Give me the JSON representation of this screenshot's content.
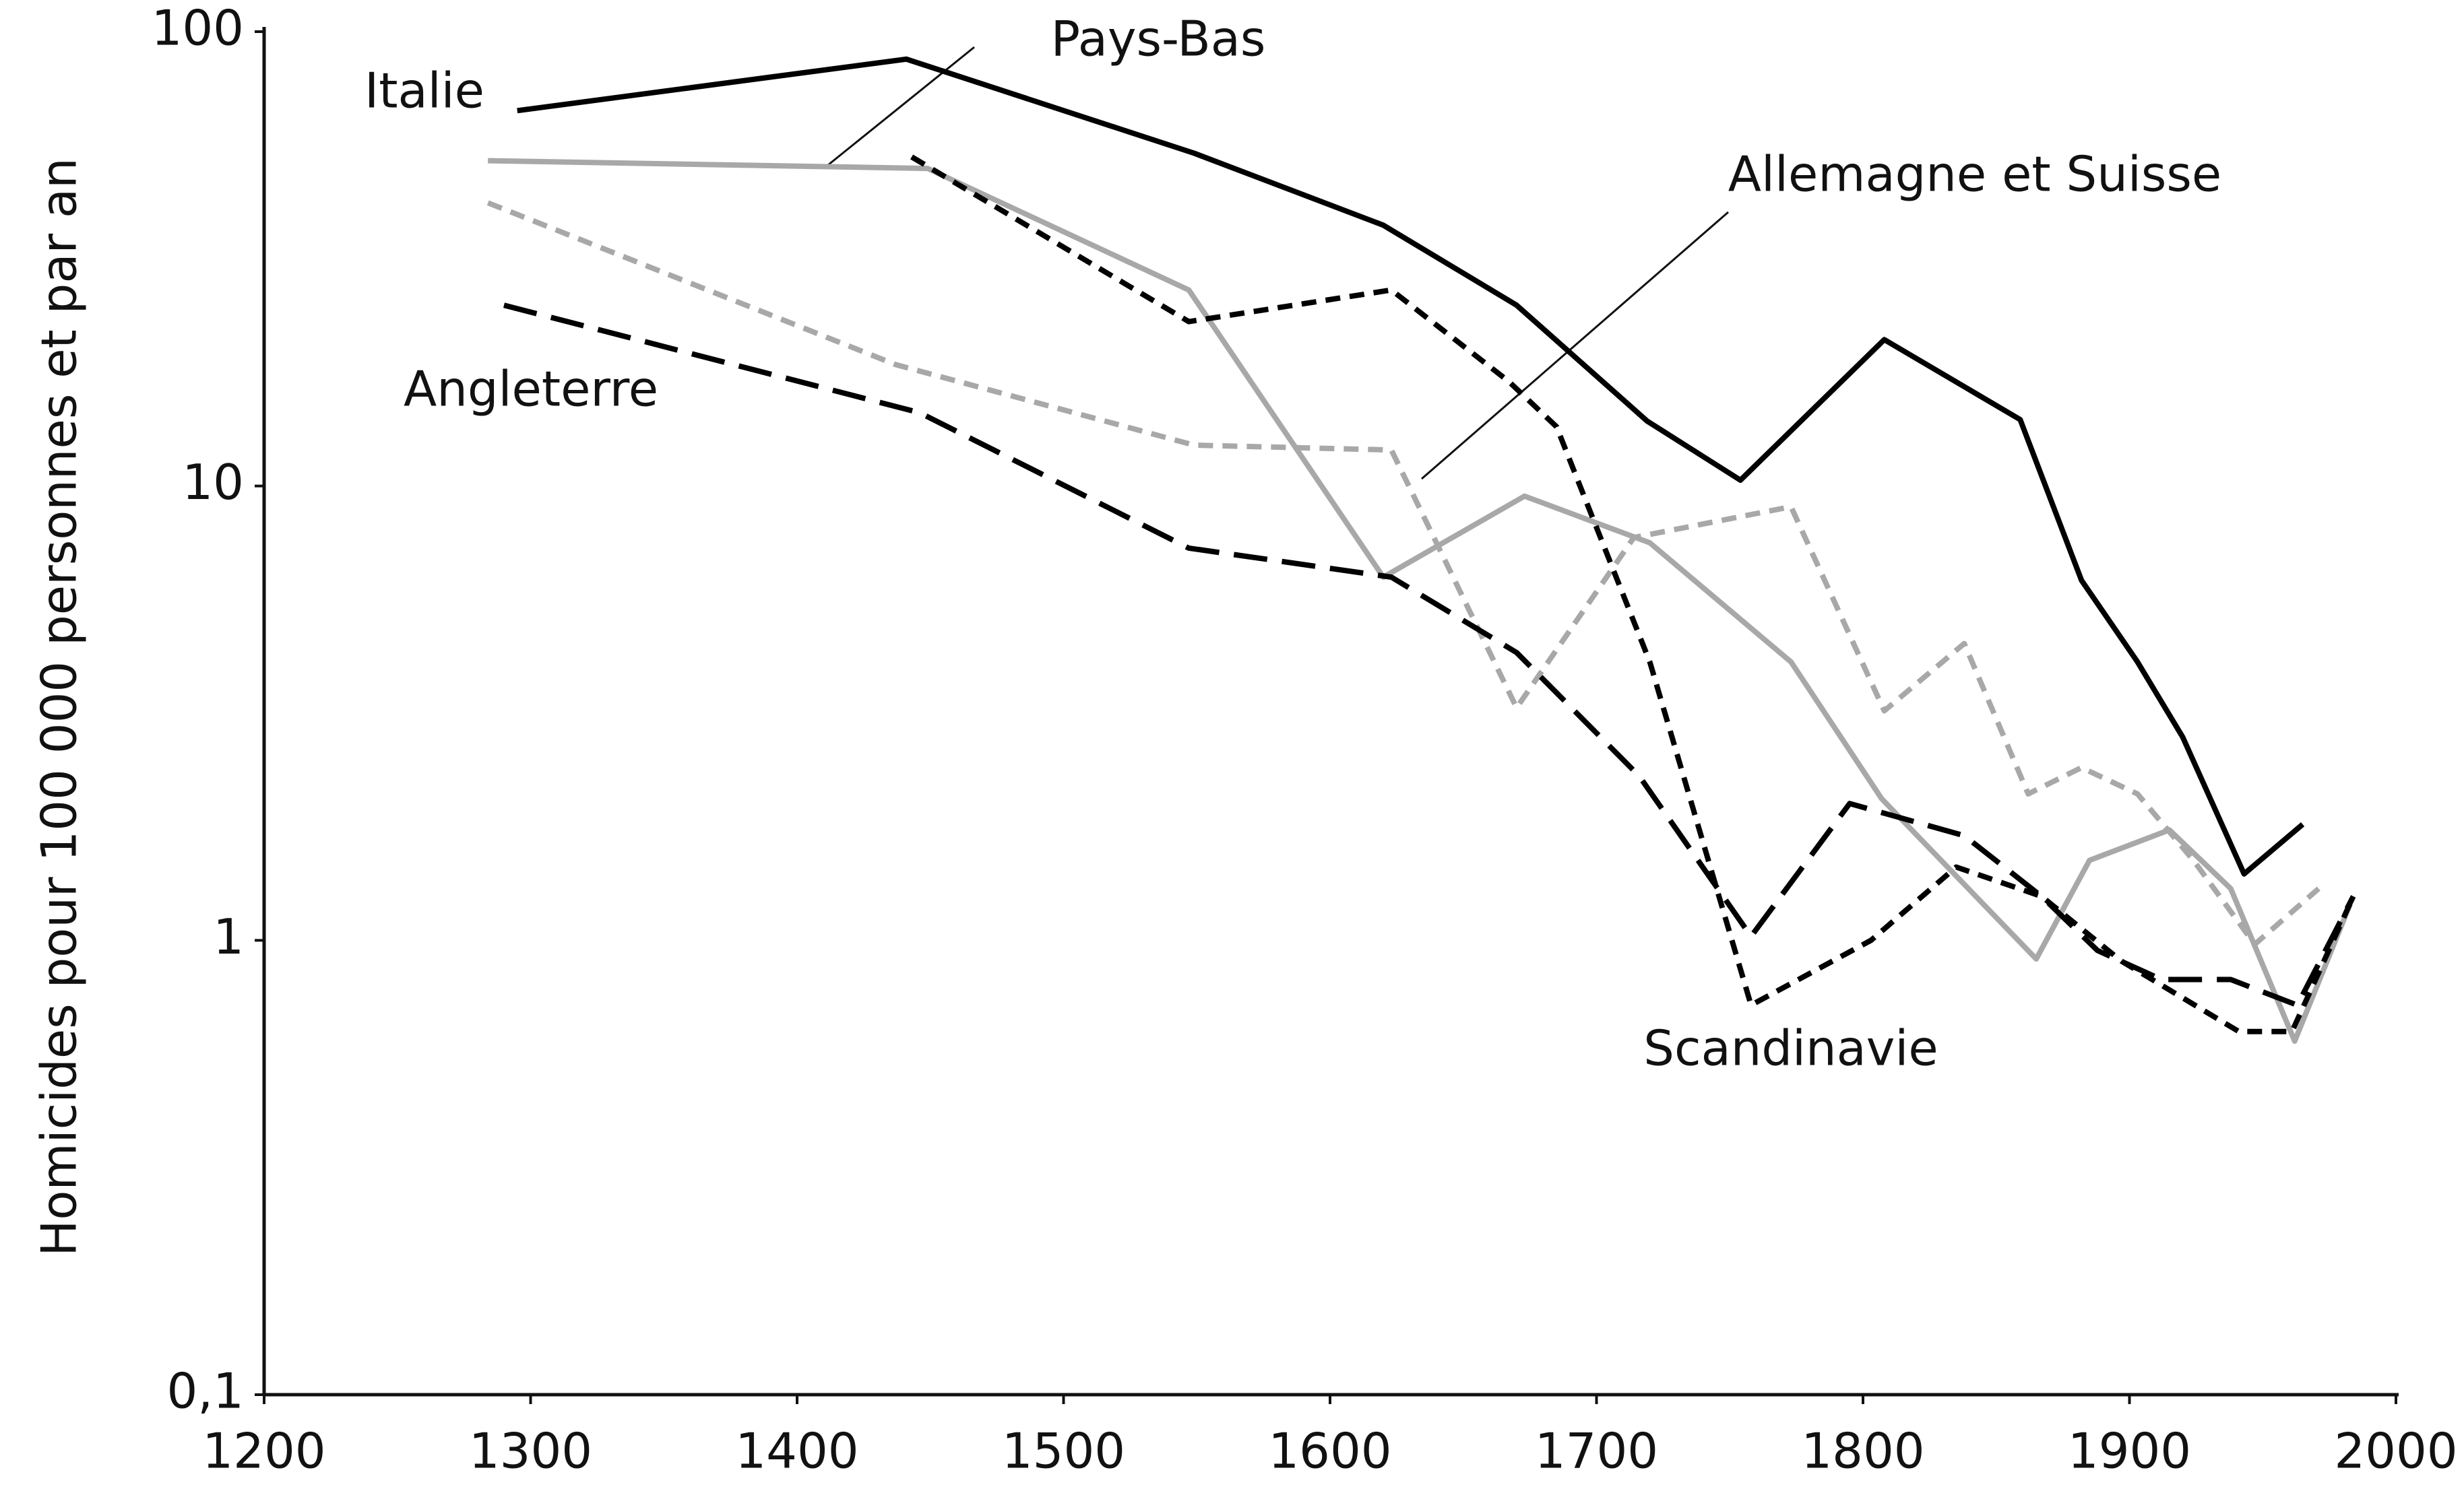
{
  "chart_data": {
    "type": "line",
    "y_label": "Homicides pour 100 000 personnes et par an",
    "xlim": [
      1200,
      2000
    ],
    "xticks": [
      1200,
      1300,
      1400,
      1500,
      1600,
      1700,
      1800,
      1900,
      2000
    ],
    "ylim": [
      0.1,
      100
    ],
    "yticks": [
      {
        "value": 0.1,
        "label": "0,1"
      },
      1,
      10,
      100
    ],
    "log_y": true,
    "series": [
      {
        "name": "Italie",
        "color": "#000000",
        "dash": "solid",
        "x": [
          1295,
          1441,
          1549,
          1620,
          1670,
          1719,
          1754,
          1808,
          1859,
          1882,
          1903,
          1920,
          1943,
          1965
        ],
        "values": [
          67,
          87,
          54,
          37.5,
          25,
          13.9,
          10.3,
          21,
          14,
          6.2,
          4.1,
          2.8,
          1.4,
          1.8
        ]
      },
      {
        "name": "Pays-Bas",
        "color": "#a8a8a8",
        "dash": "solid",
        "x": [
          1284,
          1449,
          1547,
          1620,
          1673,
          1720,
          1773,
          1807,
          1865,
          1885,
          1915,
          1938,
          1962,
          1984
        ],
        "values": [
          52,
          50,
          27,
          6.3,
          9.5,
          7.5,
          4.1,
          2.05,
          0.91,
          1.5,
          1.75,
          1.3,
          0.6,
          1.25
        ]
      },
      {
        "name": "Allemagne et Suisse",
        "color": "#a8a8a8",
        "dash": "short",
        "x": [
          1284,
          1437,
          1549,
          1623,
          1670,
          1714,
          1773,
          1808,
          1838,
          1862,
          1882,
          1903,
          1924,
          1947,
          1971
        ],
        "values": [
          42,
          18.5,
          12.3,
          12,
          3.25,
          7.7,
          9,
          3.2,
          4.5,
          2.1,
          2.4,
          2.1,
          1.5,
          0.98,
          1.3
        ]
      },
      {
        "name": "Angleterre",
        "color": "#000000",
        "dash": "long",
        "x": [
          1290,
          1446,
          1547,
          1623,
          1670,
          1716,
          1758,
          1795,
          1838,
          1867,
          1888,
          1912,
          1938,
          1963,
          1984
        ],
        "values": [
          25,
          14.5,
          7.3,
          6.3,
          4.3,
          2.3,
          1.02,
          2.0,
          1.7,
          1.25,
          0.95,
          0.82,
          0.82,
          0.72,
          1.25
        ]
      },
      {
        "name": "Scandinavie",
        "color": "#000000",
        "dash": "short",
        "x": [
          1443,
          1547,
          1623,
          1667,
          1685,
          1720,
          1758,
          1803,
          1835,
          1867,
          1897,
          1941,
          1961,
          1984
        ],
        "values": [
          53,
          23,
          27,
          17,
          13.5,
          4.1,
          0.72,
          1.0,
          1.45,
          1.25,
          0.9,
          0.63,
          0.63,
          1.25
        ]
      }
    ]
  }
}
